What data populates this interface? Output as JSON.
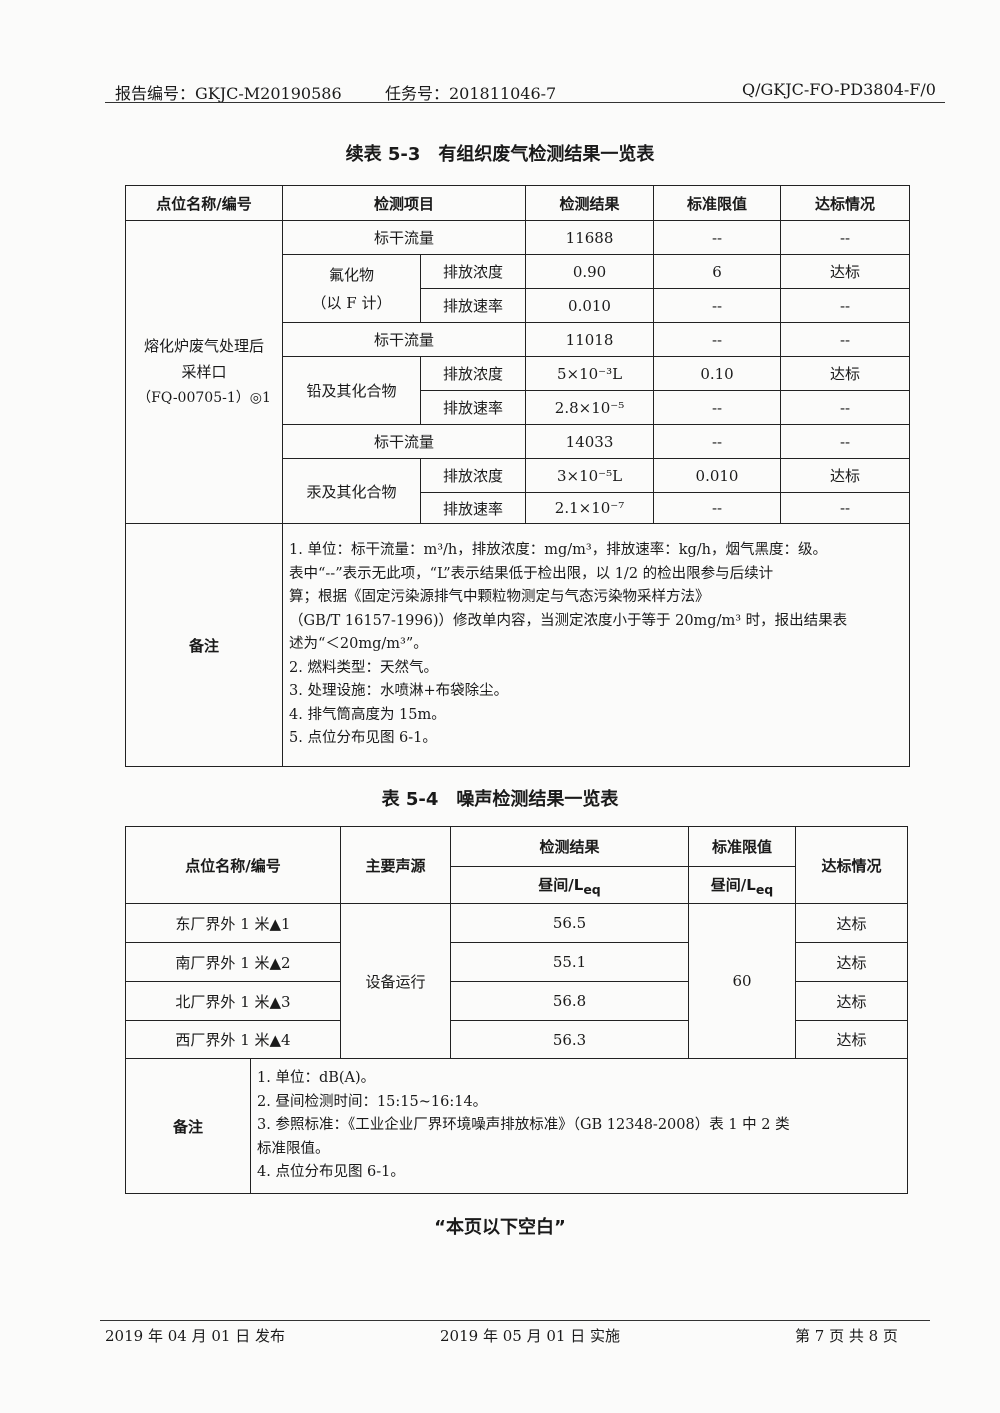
{
  "header": {
    "report_no": "报告编号：GKJC-M20190586",
    "task_no": "任务号：201811046-7",
    "doc_code": "Q/GKJC-FO-PD3804-F/0"
  },
  "table1": {
    "title": "续表 5-3　有组织废气检测结果一览表",
    "columns": [
      "点位名称/编号",
      "检测项目",
      "检测结果",
      "标准限值",
      "达标情况"
    ],
    "location": [
      "熔化炉废气处理后",
      "采样口",
      "（FQ-00705-1）◎1"
    ],
    "rows": [
      {
        "item": "标干流量",
        "result": "11688",
        "limit": "--",
        "status": "--"
      },
      {
        "group": "氟化物",
        "group2": "（以 F 计）",
        "item": "排放浓度",
        "result": "0.90",
        "limit": "6",
        "status": "达标"
      },
      {
        "item": "排放速率",
        "result": "0.010",
        "limit": "--",
        "status": "--"
      },
      {
        "item": "标干流量",
        "result": "11018",
        "limit": "--",
        "status": "--"
      },
      {
        "group": "铅及其化合物",
        "item": "排放浓度",
        "result": "5×10⁻³L",
        "limit": "0.10",
        "status": "达标"
      },
      {
        "item": "排放速率",
        "result": "2.8×10⁻⁵",
        "limit": "--",
        "status": "--"
      },
      {
        "item": "标干流量",
        "result": "14033",
        "limit": "--",
        "status": "--"
      },
      {
        "group": "汞及其化合物",
        "item": "排放浓度",
        "result": "3×10⁻⁵L",
        "limit": "0.010",
        "status": "达标"
      },
      {
        "item": "排放速率",
        "result": "2.1×10⁻⁷",
        "limit": "--",
        "status": "--"
      }
    ],
    "notes_label": "备注",
    "notes": [
      "1.  单位：标干流量：m³/h，排放浓度：mg/m³，排放速率：kg/h，烟气黑度：级。",
      "  表中“--”表示无此项，“L”表示结果低于检出限，以 1/2 的检出限参与后续计",
      "算；根据《固定污染源排气中颗粒物测定与气态污染物采样方法》",
      "（GB/T 16157-1996)）修改单内容，当测定浓度小于等于 20mg/m³ 时，报出结果表",
      "述为“＜20mg/m³”。",
      "2.  燃料类型：天然气。",
      "3.  处理设施：水喷淋+布袋除尘。",
      "4.  排气筒高度为 15m。",
      "5.  点位分布见图 6-1。"
    ]
  },
  "table2": {
    "title": "表 5-4　噪声检测结果一览表",
    "columns": [
      "点位名称/编号",
      "主要声源",
      "检测结果",
      "标准限值",
      "达标情况"
    ],
    "sub_label": "昼间/L",
    "sub_suffix": "eq",
    "source": "设备运行",
    "limit": "60",
    "rows": [
      {
        "location": "东厂界外 1 米▲1",
        "result": "56.5",
        "status": "达标"
      },
      {
        "location": "南厂界外 1 米▲2",
        "result": "55.1",
        "status": "达标"
      },
      {
        "location": "北厂界外 1 米▲3",
        "result": "56.8",
        "status": "达标"
      },
      {
        "location": "西厂界外 1 米▲4",
        "result": "56.3",
        "status": "达标"
      }
    ],
    "notes_label": "备注",
    "notes": [
      "1.  单位：dB(A)。",
      "2.  昼间检测时间：15:15~16:14。",
      "3.  参照标准：《工业企业厂界环境噪声排放标准》（GB 12348-2008）表 1 中 2 类",
      "标准限值。",
      "4.  点位分布见图 6-1。"
    ]
  },
  "end_note": "“本页以下空白”",
  "footer": {
    "issued": "2019 年 04 月 01 日  发布",
    "effective": "2019 年 05 月 01 日  实施",
    "page": "第 7 页 共 8 页"
  }
}
